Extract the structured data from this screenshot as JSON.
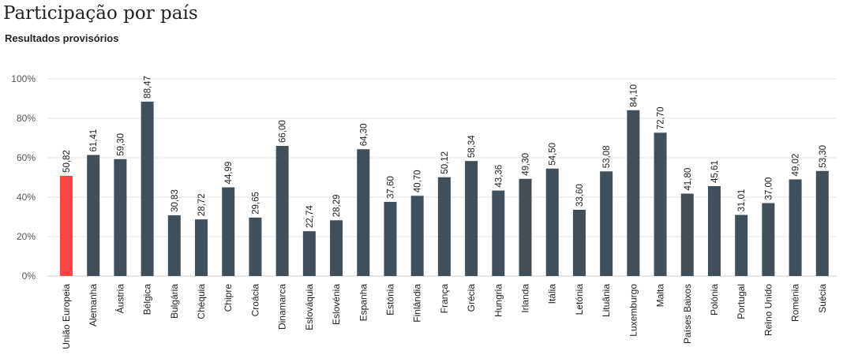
{
  "chart_data": {
    "type": "bar",
    "title": "Participação por país",
    "subtitle": "Resultados provisórios",
    "xlabel": "",
    "ylabel": "",
    "ylim": [
      0,
      100
    ],
    "yticks": [
      "0%",
      "20%",
      "40%",
      "60%",
      "80%",
      "100%"
    ],
    "grid": true,
    "legend": "none",
    "categories": [
      "União Europeia",
      "Alemanha",
      "Áustria",
      "Bélgica",
      "Bulgária",
      "Chéquia",
      "Chipre",
      "Croácia",
      "Dinamarca",
      "Eslováquia",
      "Eslovénia",
      "Espanha",
      "Estónia",
      "Finlândia",
      "França",
      "Grécia",
      "Hungria",
      "Irlanda",
      "Itália",
      "Letónia",
      "Lituânia",
      "Luxemburgo",
      "Malta",
      "Países Baixos",
      "Polónia",
      "Portugal",
      "Reino Unido",
      "Roménia",
      "Suécia"
    ],
    "values": [
      50.82,
      61.41,
      59.3,
      88.47,
      30.83,
      28.72,
      44.99,
      29.65,
      66.0,
      22.74,
      28.29,
      64.3,
      37.6,
      40.7,
      50.12,
      58.34,
      43.36,
      49.3,
      54.5,
      33.6,
      53.08,
      84.1,
      72.7,
      41.8,
      45.61,
      31.01,
      37.0,
      49.02,
      53.3
    ],
    "value_labels": [
      "50,82",
      "61,41",
      "59,30",
      "88,47",
      "30,83",
      "28,72",
      "44,99",
      "29,65",
      "66,00",
      "22,74",
      "28,29",
      "64,30",
      "37,60",
      "40,70",
      "50,12",
      "58,34",
      "43,36",
      "49,30",
      "54,50",
      "33,60",
      "53,08",
      "84,10",
      "72,70",
      "41,80",
      "45,61",
      "31,01",
      "37,00",
      "49,02",
      "53,30"
    ],
    "colors": {
      "highlight": "#ff4444",
      "bar": "#414f5a",
      "grid": "#e6e6e6",
      "axis": "#cccccc"
    },
    "highlight_index": 0
  }
}
